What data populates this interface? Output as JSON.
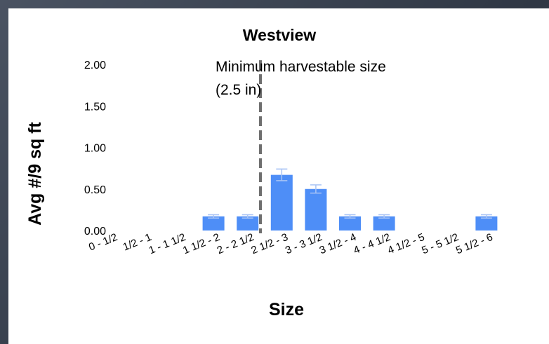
{
  "chart_data": {
    "type": "bar",
    "title": "Westview",
    "xlabel": "Size",
    "ylabel": "Avg #/9 sq ft",
    "ylim": [
      0,
      2
    ],
    "yticks": [
      "0.00",
      "0.50",
      "1.00",
      "1.50",
      "2.00"
    ],
    "grid": false,
    "categories": [
      "0 - 1/2",
      "1/2 - 1",
      "1 - 1 1/2",
      "1 1/2 - 2",
      "2 - 2 1/2",
      "2 1/2 - 3",
      "3 - 3 1/2",
      "3 1/2 - 4",
      "4 - 4 1/2",
      "4 1/2 - 5",
      "5 - 5 1/2",
      "5 1/2 - 6"
    ],
    "values": [
      0,
      0,
      0,
      0.17,
      0.17,
      0.67,
      0.5,
      0.17,
      0.17,
      0,
      0,
      0.17
    ],
    "errors": [
      0,
      0,
      0,
      0.02,
      0.02,
      0.07,
      0.05,
      0.02,
      0.02,
      0,
      0,
      0.02
    ],
    "bar_color": "#4e8ef7",
    "error_color": "#a9c4f5",
    "annotation": {
      "line1": "Minimum harvestable size",
      "line2": "(2.5 in)",
      "x_value": 2.5,
      "line_color": "#6f6f6f"
    }
  }
}
